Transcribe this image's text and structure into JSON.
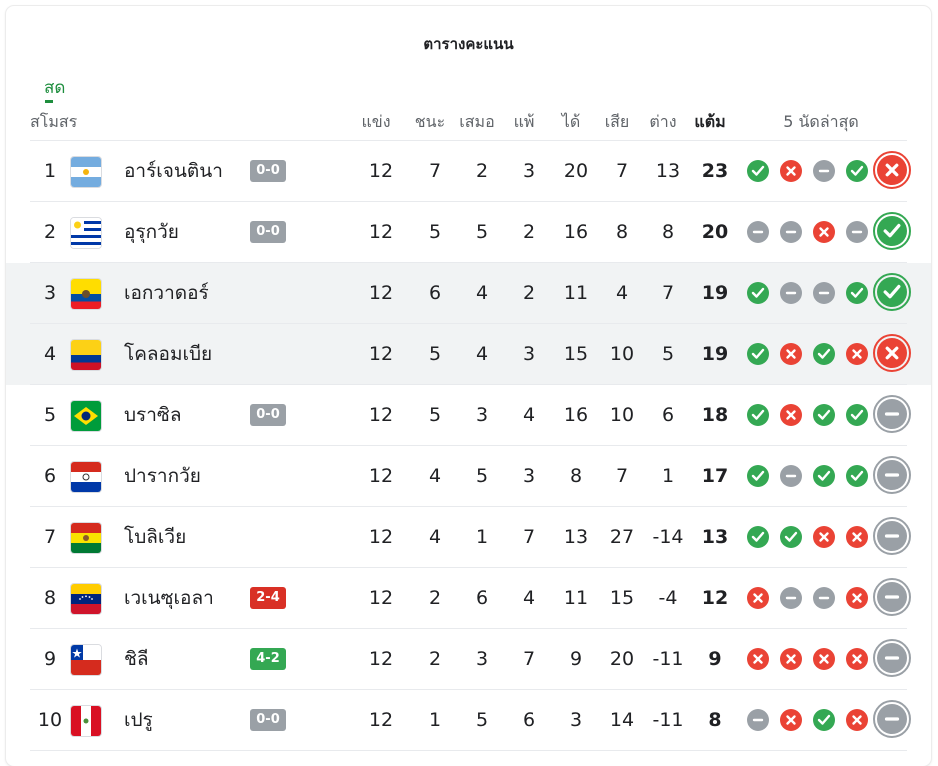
{
  "title": "ตารางคะแนน",
  "tab_live": "สด",
  "headers": {
    "club": "สโมสร",
    "played": "แข่ง",
    "won": "ชนะ",
    "drawn": "เสมอ",
    "lost": "แพ้",
    "gf": "ได้",
    "ga": "เสีย",
    "gd": "ต่าง",
    "pts": "แต้ม",
    "form": "5 นัดล่าสุด"
  },
  "colors": {
    "win": "#34a853",
    "loss": "#ea4335",
    "draw": "#9aa0a6",
    "live_accent": "#1e8e3e"
  },
  "rows": [
    {
      "pos": "1",
      "team": "อาร์เจนตินา",
      "flag": "argentina-flag",
      "score": "0-0",
      "score_type": "draw",
      "p": "12",
      "w": "7",
      "d": "2",
      "l": "3",
      "gf": "20",
      "ga": "7",
      "gd": "13",
      "pts": "23",
      "form": [
        "W",
        "L",
        "D",
        "W",
        "L"
      ],
      "highlight": false
    },
    {
      "pos": "2",
      "team": "อุรุกวัย",
      "flag": "uruguay-flag",
      "score": "0-0",
      "score_type": "draw",
      "p": "12",
      "w": "5",
      "d": "5",
      "l": "2",
      "gf": "16",
      "ga": "8",
      "gd": "8",
      "pts": "20",
      "form": [
        "D",
        "D",
        "L",
        "D",
        "W"
      ],
      "highlight": false
    },
    {
      "pos": "3",
      "team": "เอกวาดอร์",
      "flag": "ecuador-flag",
      "score": "",
      "score_type": "none",
      "p": "12",
      "w": "6",
      "d": "4",
      "l": "2",
      "gf": "11",
      "ga": "4",
      "gd": "7",
      "pts": "19",
      "form": [
        "W",
        "D",
        "D",
        "W",
        "W"
      ],
      "highlight": true
    },
    {
      "pos": "4",
      "team": "โคลอมเบีย",
      "flag": "colombia-flag",
      "score": "",
      "score_type": "none",
      "p": "12",
      "w": "5",
      "d": "4",
      "l": "3",
      "gf": "15",
      "ga": "10",
      "gd": "5",
      "pts": "19",
      "form": [
        "W",
        "L",
        "W",
        "L",
        "L"
      ],
      "highlight": true
    },
    {
      "pos": "5",
      "team": "บราซิล",
      "flag": "brazil-flag",
      "score": "0-0",
      "score_type": "draw",
      "p": "12",
      "w": "5",
      "d": "3",
      "l": "4",
      "gf": "16",
      "ga": "10",
      "gd": "6",
      "pts": "18",
      "form": [
        "W",
        "L",
        "W",
        "W",
        "D"
      ],
      "highlight": false
    },
    {
      "pos": "6",
      "team": "ปารากวัย",
      "flag": "paraguay-flag",
      "score": "",
      "score_type": "none",
      "p": "12",
      "w": "4",
      "d": "5",
      "l": "3",
      "gf": "8",
      "ga": "7",
      "gd": "1",
      "pts": "17",
      "form": [
        "W",
        "D",
        "W",
        "W",
        "D"
      ],
      "highlight": false
    },
    {
      "pos": "7",
      "team": "โบลิเวีย",
      "flag": "bolivia-flag",
      "score": "",
      "score_type": "none",
      "p": "12",
      "w": "4",
      "d": "1",
      "l": "7",
      "gf": "13",
      "ga": "27",
      "gd": "-14",
      "pts": "13",
      "form": [
        "W",
        "W",
        "L",
        "L",
        "D"
      ],
      "highlight": false
    },
    {
      "pos": "8",
      "team": "เวเนซุเอลา",
      "flag": "venezuela-flag",
      "score": "2-4",
      "score_type": "loss",
      "p": "12",
      "w": "2",
      "d": "6",
      "l": "4",
      "gf": "11",
      "ga": "15",
      "gd": "-4",
      "pts": "12",
      "form": [
        "L",
        "D",
        "D",
        "L",
        "D"
      ],
      "highlight": false
    },
    {
      "pos": "9",
      "team": "ชิลี",
      "flag": "chile-flag",
      "score": "4-2",
      "score_type": "win",
      "p": "12",
      "w": "2",
      "d": "3",
      "l": "7",
      "gf": "9",
      "ga": "20",
      "gd": "-11",
      "pts": "9",
      "form": [
        "L",
        "L",
        "L",
        "L",
        "D"
      ],
      "highlight": false
    },
    {
      "pos": "10",
      "team": "เปรู",
      "flag": "peru-flag",
      "score": "0-0",
      "score_type": "draw",
      "p": "12",
      "w": "1",
      "d": "5",
      "l": "6",
      "gf": "3",
      "ga": "14",
      "gd": "-11",
      "pts": "8",
      "form": [
        "D",
        "L",
        "W",
        "L",
        "D"
      ],
      "highlight": false
    }
  ]
}
